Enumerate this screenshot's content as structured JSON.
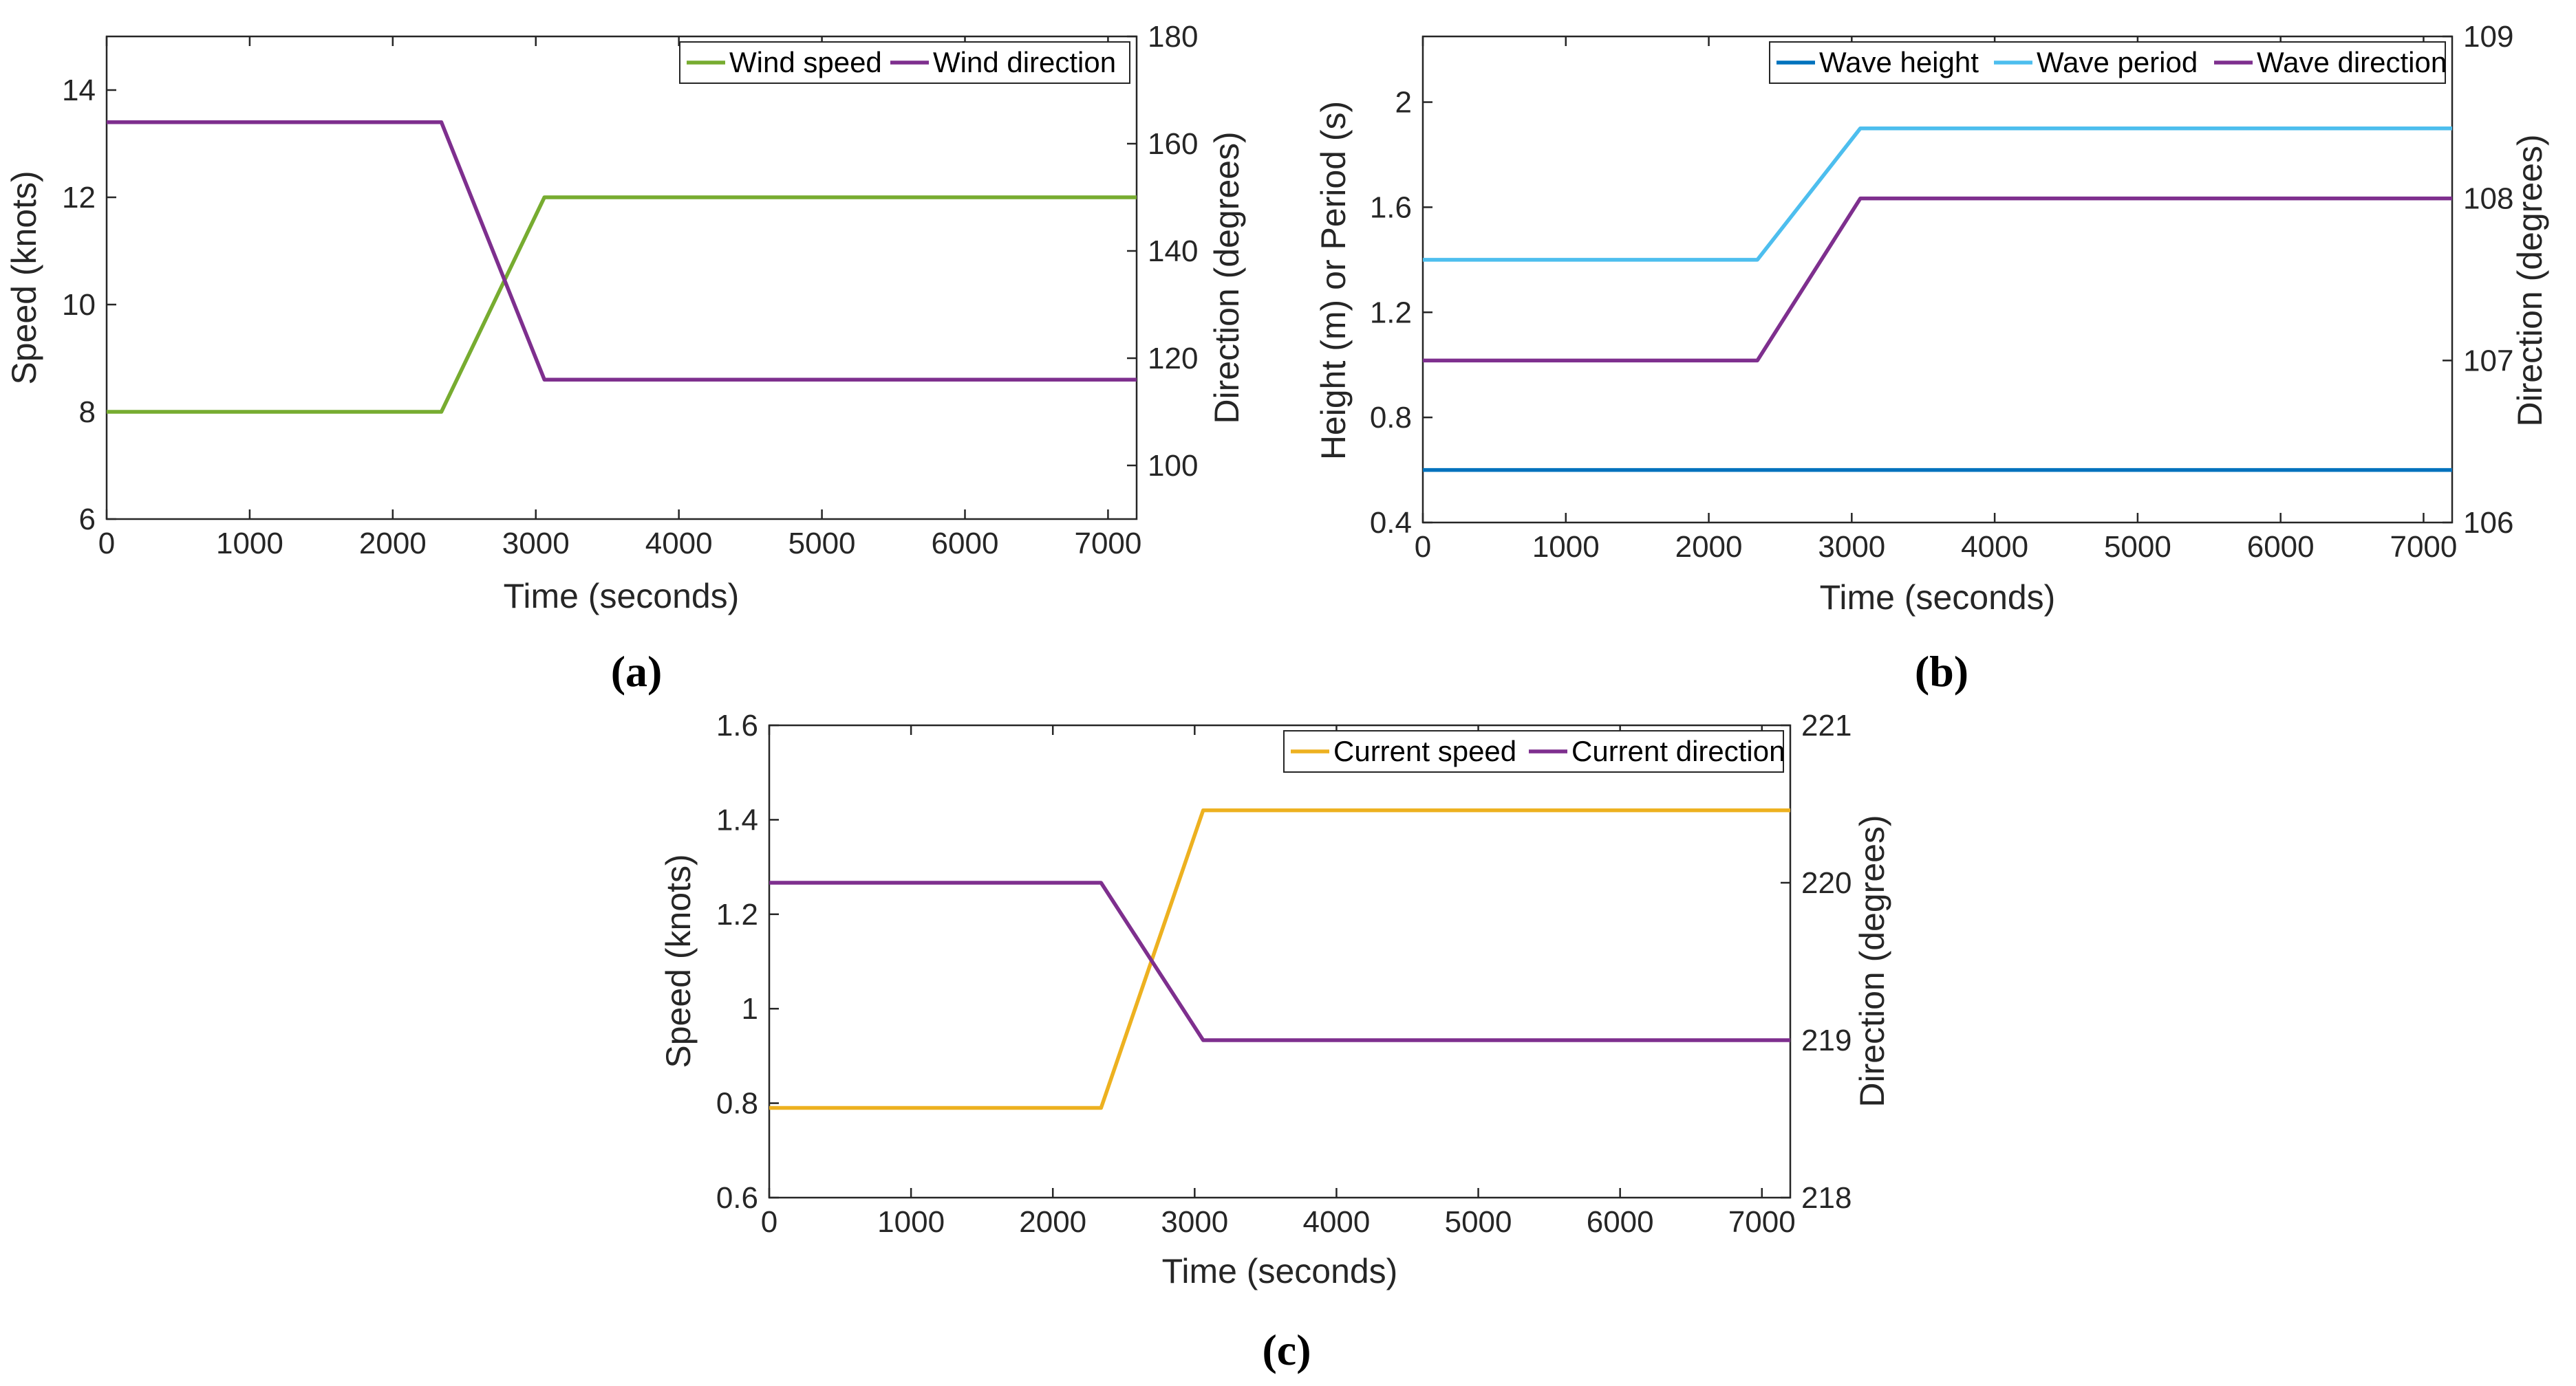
{
  "chart_data": [
    {
      "type": "line",
      "panel_label": "(a)",
      "xlabel": "Time (seconds)",
      "ylabel_left": "Speed (knots)",
      "ylabel_right": "Direction (degrees)",
      "xlim": [
        0,
        7200
      ],
      "ylim_left": [
        6,
        15
      ],
      "ylim_right": [
        90,
        180
      ],
      "xticks": [
        0,
        1000,
        2000,
        3000,
        4000,
        5000,
        6000,
        7000
      ],
      "yticks_left": [
        6,
        8,
        10,
        12,
        14
      ],
      "yticks_right": [
        100,
        120,
        140,
        160,
        180
      ],
      "grid": false,
      "legend_position": "top-right",
      "series": [
        {
          "name": "Wind speed",
          "axis": "left",
          "color": "#77AC30",
          "x": [
            0,
            2340,
            3060,
            7200
          ],
          "y": [
            8,
            8,
            12,
            12
          ]
        },
        {
          "name": "Wind direction",
          "axis": "right",
          "color": "#7E2F8E",
          "x": [
            0,
            2340,
            3060,
            7200
          ],
          "y": [
            164,
            164,
            116,
            116
          ]
        }
      ]
    },
    {
      "type": "line",
      "panel_label": "(b)",
      "xlabel": "Time (seconds)",
      "ylabel_left": "Height (m) or Period (s)",
      "ylabel_right": "Direction (degrees)",
      "xlim": [
        0,
        7200
      ],
      "ylim_left": [
        0.4,
        2.25
      ],
      "ylim_right": [
        106,
        109
      ],
      "xticks": [
        0,
        1000,
        2000,
        3000,
        4000,
        5000,
        6000,
        7000
      ],
      "yticks_left": [
        0.4,
        0.8,
        1.2,
        1.6,
        2
      ],
      "ytick_labels_left": [
        "0.4",
        "0.8",
        "1.2",
        "1.6",
        "2"
      ],
      "yticks_right": [
        106,
        107,
        108,
        109
      ],
      "grid": false,
      "legend_position": "top-right",
      "series": [
        {
          "name": "Wave height",
          "axis": "left",
          "color": "#0072BD",
          "x": [
            0,
            7200
          ],
          "y": [
            0.6,
            0.6
          ]
        },
        {
          "name": "Wave period",
          "axis": "left",
          "color": "#4DBEEE",
          "x": [
            0,
            2340,
            3060,
            7200
          ],
          "y": [
            1.4,
            1.4,
            1.9,
            1.9
          ]
        },
        {
          "name": "Wave direction",
          "axis": "right",
          "color": "#7E2F8E",
          "x": [
            0,
            2340,
            3060,
            7200
          ],
          "y": [
            107,
            107,
            108,
            108
          ]
        }
      ]
    },
    {
      "type": "line",
      "panel_label": "(c)",
      "xlabel": "Time (seconds)",
      "ylabel_left": "Speed (knots)",
      "ylabel_right": "Direction (degrees)",
      "xlim": [
        0,
        7200
      ],
      "ylim_left": [
        0.6,
        1.6
      ],
      "ylim_right": [
        218,
        221
      ],
      "xticks": [
        0,
        1000,
        2000,
        3000,
        4000,
        5000,
        6000,
        7000
      ],
      "yticks_left": [
        0.6,
        0.8,
        1,
        1.2,
        1.4,
        1.6
      ],
      "ytick_labels_left": [
        "0.6",
        "0.8",
        "1",
        "1.2",
        "1.4",
        "1.6"
      ],
      "yticks_right": [
        218,
        219,
        220,
        221
      ],
      "grid": false,
      "legend_position": "top-right",
      "series": [
        {
          "name": "Current speed",
          "axis": "left",
          "color": "#EDB120",
          "x": [
            0,
            2340,
            3060,
            7200
          ],
          "y": [
            0.79,
            0.79,
            1.42,
            1.42
          ]
        },
        {
          "name": "Current direction",
          "axis": "right",
          "color": "#7E2F8E",
          "x": [
            0,
            2340,
            3060,
            7200
          ],
          "y": [
            220,
            220,
            219,
            219
          ]
        }
      ]
    }
  ]
}
